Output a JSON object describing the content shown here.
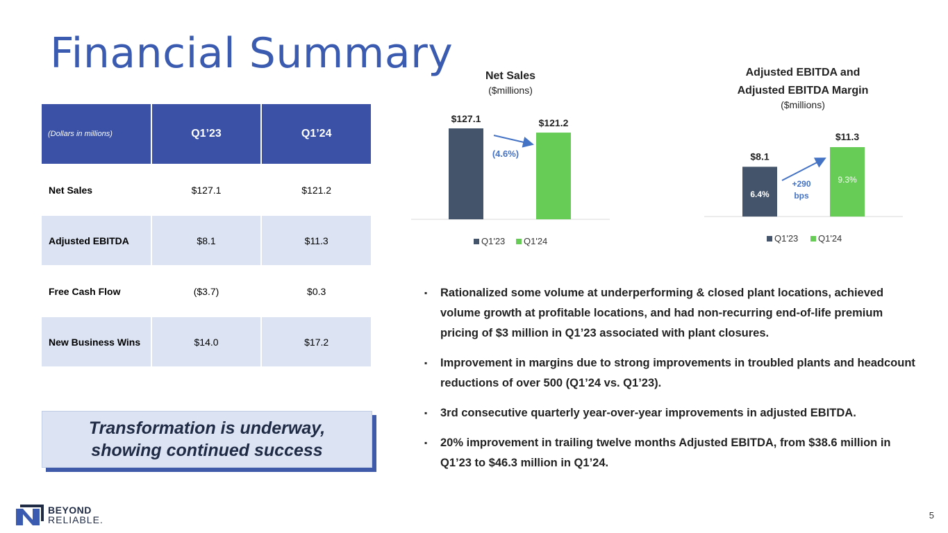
{
  "slide": {
    "title": "Financial Summary",
    "page_number": "5"
  },
  "table": {
    "header_note": "(Dollars in millions)",
    "col1": "Q1’23",
    "col2": "Q1’24",
    "rows": [
      {
        "label": "Net Sales",
        "q123": "$127.1",
        "q124": "$121.2"
      },
      {
        "label": "Adjusted EBITDA",
        "q123": "$8.1",
        "q124": "$11.3"
      },
      {
        "label": "Free Cash Flow",
        "q123": "($3.7)",
        "q124": "$0.3"
      },
      {
        "label": "New Business Wins",
        "q123": "$14.0",
        "q124": "$17.2"
      }
    ]
  },
  "callout": {
    "line1": "Transformation is underway,",
    "line2": "showing continued success"
  },
  "colors": {
    "q123": "#44546a",
    "q124": "#66cc55",
    "accent_blue": "#3a5bb0",
    "table_header": "#3a51a6",
    "table_shade": "#dce4f3"
  },
  "chart_data": [
    {
      "type": "bar",
      "title": "Net Sales",
      "subtitle": "($millions)",
      "categories": [
        "Q1'23",
        "Q1'24"
      ],
      "values": [
        127.1,
        121.2
      ],
      "value_labels": [
        "$127.1",
        "$121.2"
      ],
      "annotation": "(4.6%)",
      "legend": [
        "Q1'23",
        "Q1'24"
      ],
      "legend_position": "bottom"
    },
    {
      "type": "bar",
      "title_line1": "Adjusted EBITDA and",
      "title_line2": "Adjusted EBITDA Margin",
      "subtitle": "($millions)",
      "categories": [
        "Q1'23",
        "Q1'24"
      ],
      "values": [
        8.1,
        11.3
      ],
      "value_labels": [
        "$8.1",
        "$11.3"
      ],
      "margins": [
        "6.4%",
        "9.3%"
      ],
      "annotation_line1": "+290",
      "annotation_line2": "bps",
      "legend": [
        "Q1'23",
        "Q1'24"
      ],
      "legend_position": "bottom"
    }
  ],
  "bullets": [
    "Rationalized some volume at underperforming & closed plant locations, achieved volume growth at profitable locations, and had non-recurring end-of-life premium pricing of $3 million in Q1’23 associated with plant closures.",
    "Improvement in margins due to strong improvements in troubled plants and headcount reductions of over 500 (Q1’24 vs. Q1’23).",
    "3rd consecutive quarterly year-over-year improvements in adjusted EBITDA.",
    "20% improvement in trailing twelve months Adjusted EBITDA, from $38.6 million in Q1’23 to $46.3 million in Q1’24."
  ],
  "bullet_mark": "▪",
  "logo": {
    "line1": "BEYOND",
    "line2": "RELIABLE."
  }
}
